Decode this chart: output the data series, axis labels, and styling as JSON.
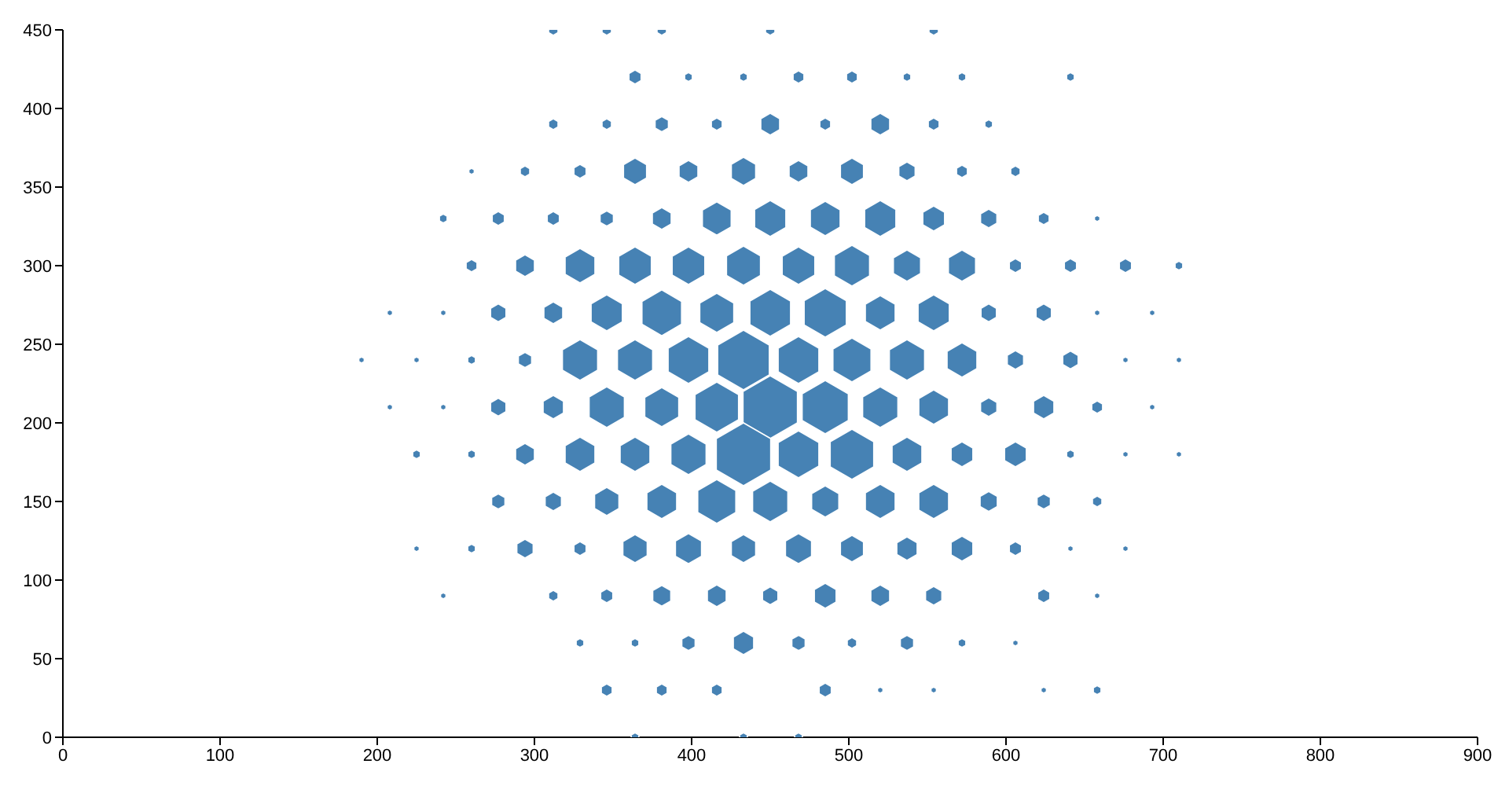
{
  "chart_data": {
    "type": "bubble",
    "relative": false,
    "xlim": [
      0,
      900
    ],
    "xticks": [
      0,
      100,
      200,
      300,
      400,
      500,
      600,
      700,
      800,
      900
    ],
    "ylim": [
      0,
      450
    ],
    "yticks": [
      0,
      50,
      100,
      150,
      200,
      250,
      300,
      350,
      400,
      450
    ],
    "grid": false,
    "legend": false,
    "series": [
      {
        "color": "#4682b4",
        "x": [
          312,
          346,
          381,
          450,
          554,
          364,
          398,
          433,
          468,
          502,
          537,
          572,
          641,
          312,
          346,
          381,
          416,
          450,
          485,
          520,
          554,
          589,
          260,
          294,
          329,
          364,
          398,
          433,
          468,
          502,
          537,
          572,
          606,
          242,
          277,
          312,
          346,
          381,
          416,
          450,
          485,
          520,
          554,
          589,
          624,
          658,
          260,
          294,
          329,
          364,
          398,
          433,
          468,
          502,
          537,
          572,
          606,
          641,
          676,
          710,
          208,
          242,
          277,
          312,
          346,
          381,
          416,
          450,
          485,
          520,
          554,
          589,
          624,
          658,
          693,
          190,
          225,
          260,
          294,
          329,
          364,
          398,
          433,
          468,
          502,
          537,
          572,
          606,
          641,
          676,
          710,
          208,
          242,
          277,
          312,
          346,
          381,
          416,
          450,
          485,
          520,
          554,
          589,
          624,
          658,
          693,
          225,
          260,
          294,
          329,
          364,
          398,
          433,
          468,
          502,
          537,
          572,
          606,
          641,
          676,
          710,
          277,
          312,
          346,
          381,
          416,
          450,
          485,
          520,
          554,
          589,
          624,
          658,
          225,
          260,
          294,
          329,
          364,
          398,
          433,
          468,
          502,
          537,
          572,
          606,
          641,
          676,
          242,
          312,
          346,
          381,
          416,
          450,
          485,
          520,
          554,
          624,
          658,
          329,
          364,
          398,
          433,
          468,
          502,
          537,
          572,
          606,
          346,
          381,
          416,
          485,
          520,
          554,
          624,
          658,
          364,
          433,
          468
        ],
        "values": [
          450,
          450,
          450,
          450,
          450,
          420,
          420,
          420,
          420,
          420,
          420,
          420,
          420,
          390,
          390,
          390,
          390,
          390,
          390,
          390,
          390,
          390,
          360,
          360,
          360,
          360,
          360,
          360,
          360,
          360,
          360,
          360,
          360,
          330,
          330,
          330,
          330,
          330,
          330,
          330,
          330,
          330,
          330,
          330,
          330,
          330,
          300,
          300,
          300,
          300,
          300,
          300,
          300,
          300,
          300,
          300,
          300,
          300,
          300,
          300,
          270,
          270,
          270,
          270,
          270,
          270,
          270,
          270,
          270,
          270,
          270,
          270,
          270,
          270,
          270,
          240,
          240,
          240,
          240,
          240,
          240,
          240,
          240,
          240,
          240,
          240,
          240,
          240,
          240,
          240,
          240,
          210,
          210,
          210,
          210,
          210,
          210,
          210,
          210,
          210,
          210,
          210,
          210,
          210,
          210,
          210,
          180,
          180,
          180,
          180,
          180,
          180,
          180,
          180,
          180,
          180,
          180,
          180,
          180,
          180,
          180,
          150,
          150,
          150,
          150,
          150,
          150,
          150,
          150,
          150,
          150,
          150,
          150,
          120,
          120,
          120,
          120,
          120,
          120,
          120,
          120,
          120,
          120,
          120,
          120,
          120,
          120,
          90,
          90,
          90,
          90,
          90,
          90,
          90,
          90,
          90,
          90,
          90,
          60,
          60,
          60,
          60,
          60,
          60,
          60,
          60,
          60,
          30,
          30,
          30,
          30,
          30,
          30,
          30,
          30,
          0,
          0,
          0
        ],
        "sizes": [
          0.03,
          0.03,
          0.03,
          0.03,
          0.03,
          0.05,
          0.02,
          0.02,
          0.04,
          0.04,
          0.02,
          0.02,
          0.02,
          0.03,
          0.03,
          0.06,
          0.04,
          0.12,
          0.04,
          0.12,
          0.04,
          0.02,
          0.01,
          0.03,
          0.05,
          0.18,
          0.12,
          0.2,
          0.12,
          0.18,
          0.09,
          0.04,
          0.03,
          0.02,
          0.05,
          0.05,
          0.06,
          0.12,
          0.28,
          0.33,
          0.3,
          0.33,
          0.16,
          0.09,
          0.04,
          0.01,
          0.04,
          0.12,
          0.3,
          0.36,
          0.36,
          0.39,
          0.36,
          0.42,
          0.25,
          0.25,
          0.05,
          0.05,
          0.05,
          0.02,
          0.01,
          0.01,
          0.08,
          0.12,
          0.33,
          0.53,
          0.39,
          0.56,
          0.6,
          0.3,
          0.33,
          0.08,
          0.08,
          0.01,
          0.01,
          0.01,
          0.01,
          0.02,
          0.06,
          0.42,
          0.42,
          0.56,
          0.9,
          0.56,
          0.49,
          0.42,
          0.3,
          0.09,
          0.08,
          0.01,
          0.01,
          0.01,
          0.01,
          0.08,
          0.14,
          0.42,
          0.39,
          0.64,
          1,
          0.72,
          0.42,
          0.3,
          0.09,
          0.14,
          0.04,
          0.01,
          0.02,
          0.02,
          0.12,
          0.3,
          0.3,
          0.42,
          1,
          0.56,
          0.64,
          0.3,
          0.16,
          0.16,
          0.02,
          0.01,
          0.01,
          0.06,
          0.09,
          0.2,
          0.3,
          0.49,
          0.42,
          0.25,
          0.3,
          0.3,
          0.1,
          0.06,
          0.03,
          0.01,
          0.02,
          0.09,
          0.05,
          0.2,
          0.23,
          0.2,
          0.23,
          0.18,
          0.14,
          0.16,
          0.05,
          0.01,
          0.01,
          0.01,
          0.03,
          0.05,
          0.11,
          0.12,
          0.08,
          0.16,
          0.12,
          0.09,
          0.05,
          0.01,
          0.02,
          0.02,
          0.06,
          0.14,
          0.06,
          0.03,
          0.06,
          0.02,
          0.01,
          0.04,
          0.04,
          0.04,
          0.05,
          0.01,
          0.01,
          0.01,
          0.02,
          0.02,
          0.02,
          0.02
        ]
      }
    ]
  }
}
